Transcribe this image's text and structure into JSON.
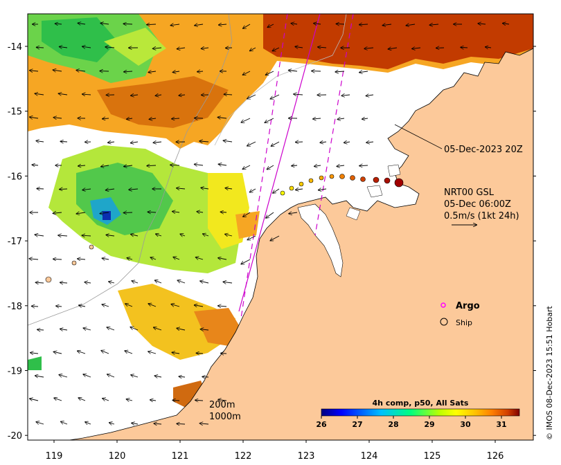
{
  "map": {
    "x_ticks": [
      "119",
      "120",
      "121",
      "122",
      "123",
      "124",
      "125",
      "126"
    ],
    "y_ticks": [
      "-14",
      "-15",
      "-16",
      "-17",
      "-18",
      "-19",
      "-20"
    ],
    "colors": {
      "land": "#fcc99a",
      "ocean_nodata": "#ffffff",
      "argo": "#ff00ff",
      "track_line": "#cc00cc"
    }
  },
  "annotations": {
    "track_time": "05-Dec-2023 20Z",
    "current_title": "NRT00 GSL",
    "current_time": "05-Dec 06:00Z",
    "current_scale": "0.5m/s (1kt 24h)"
  },
  "legend": {
    "argo_label": "Argo",
    "ship_label": "Ship"
  },
  "bathymetry": {
    "contour_200": "200m",
    "contour_1000": "1000m"
  },
  "colorbar": {
    "title": "4h comp, p50, All Sats",
    "ticks": [
      "26",
      "27",
      "28",
      "29",
      "30",
      "31"
    ],
    "stops": [
      "#00007f",
      "#0000ff",
      "#00bfff",
      "#00ff7f",
      "#bfff00",
      "#ffff00",
      "#ffbf00",
      "#ff7f00",
      "#d24000",
      "#7f0000"
    ]
  },
  "credit": "© IMOS 08-Dec-2023 15:51 Hobart"
}
